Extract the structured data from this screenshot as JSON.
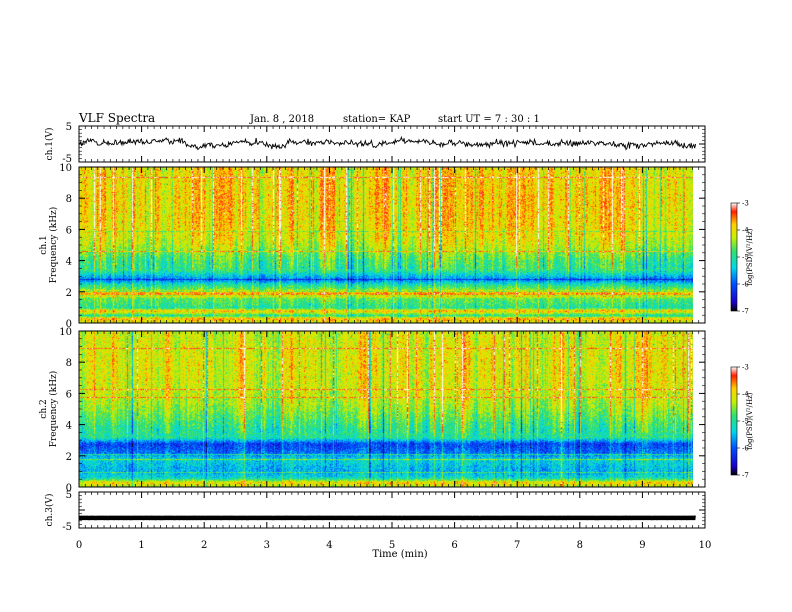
{
  "header": {
    "title": "VLF Spectra",
    "date": "Jan. 8 , 2018",
    "station": "station= KAP",
    "start": "start  UT =   7 : 30 : 1"
  },
  "chart_data": [
    {
      "type": "line",
      "panel": "ch1-waveform",
      "ylabel": "ch.1(V)",
      "ylim": [
        -5,
        5
      ],
      "yticks": [
        "5",
        "-5"
      ],
      "xlim": [
        0,
        10
      ],
      "data_end_min": 9.85,
      "description_values": {
        "mean": 0.2,
        "amplitude": 1.8
      }
    },
    {
      "type": "heatmap",
      "panel": "ch1-spectrogram",
      "ylabel": "ch.1\nFrequency (kHz)",
      "ylabel_line1": "ch.1",
      "ylabel_line2": "Frequency (kHz)",
      "ylim": [
        0,
        10
      ],
      "yticks": [
        "0",
        "2",
        "4",
        "6",
        "8",
        "10"
      ],
      "xlim": [
        0,
        10
      ],
      "data_end_min": 9.85,
      "colorbar": {
        "label": "log(PSD)(V²/Hz)",
        "range": [
          -7,
          -3
        ],
        "ticks": [
          "-3",
          "-4",
          "-5",
          "-6",
          "-7"
        ]
      },
      "bands_khz_logpsd": [
        [
          0.0,
          -4.3
        ],
        [
          0.3,
          -3.6
        ],
        [
          0.5,
          -5.0
        ],
        [
          0.8,
          -3.7
        ],
        [
          1.0,
          -5.0
        ],
        [
          1.6,
          -4.6
        ],
        [
          1.9,
          -3.4
        ],
        [
          2.2,
          -4.6
        ],
        [
          2.5,
          -5.1
        ],
        [
          2.8,
          -5.9
        ],
        [
          3.4,
          -4.9
        ],
        [
          4.0,
          -4.8
        ],
        [
          5.0,
          -4.2
        ],
        [
          6.0,
          -3.9
        ],
        [
          8.0,
          -3.8
        ],
        [
          10.0,
          -3.9
        ]
      ]
    },
    {
      "type": "heatmap",
      "panel": "ch2-spectrogram",
      "ylabel_line1": "ch.2",
      "ylabel_line2": "Frequency (kHz)",
      "ylim": [
        0,
        10
      ],
      "yticks": [
        "0",
        "2",
        "4",
        "6",
        "8",
        "10"
      ],
      "xlim": [
        0,
        10
      ],
      "data_end_min": 9.85,
      "colorbar": {
        "label": "log(PSD)(V²/Hz)",
        "range": [
          -7,
          -3
        ],
        "ticks": [
          "-3",
          "-4",
          "-5",
          "-6",
          "-7"
        ]
      },
      "bands_khz_logpsd": [
        [
          0.0,
          -4.4
        ],
        [
          0.3,
          -3.8
        ],
        [
          0.6,
          -5.2
        ],
        [
          1.0,
          -5.6
        ],
        [
          1.8,
          -5.3
        ],
        [
          2.2,
          -5.9
        ],
        [
          2.8,
          -6.2
        ],
        [
          3.2,
          -5.0
        ],
        [
          3.8,
          -4.9
        ],
        [
          5.0,
          -4.4
        ],
        [
          6.0,
          -4.1
        ],
        [
          8.0,
          -4.0
        ],
        [
          10.0,
          -4.1
        ]
      ]
    },
    {
      "type": "line",
      "panel": "ch3-waveform",
      "ylabel": "ch.3(V)",
      "ylim": [
        -5,
        5
      ],
      "yticks": [
        "5",
        "-5"
      ],
      "xlim": [
        0,
        10
      ],
      "data_end_min": 9.85,
      "description_values": {
        "mean": -2.2,
        "amplitude": 0.25
      }
    }
  ],
  "xaxis": {
    "label": "Time (min)",
    "ticks": [
      "0",
      "1",
      "2",
      "3",
      "4",
      "5",
      "6",
      "7",
      "8",
      "9",
      "10"
    ]
  }
}
